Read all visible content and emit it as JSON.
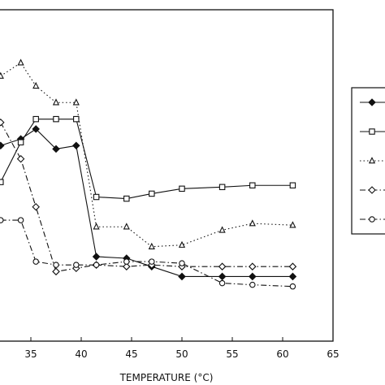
{
  "chart_data": {
    "type": "line",
    "x_label": "TEMPERATURE (°C)",
    "xlim": [
      30,
      65
    ],
    "xticks": [
      35,
      40,
      45,
      50,
      55,
      60,
      65
    ],
    "ylim": [
      0,
      100
    ],
    "legend": "right",
    "series": [
      {
        "color": "#111111",
        "marker": "diamond-filled",
        "dash": "solid",
        "x": [
          32,
          34,
          35.5,
          37.5,
          39.5,
          41.5,
          44.5,
          47,
          50,
          54,
          57,
          61
        ],
        "values": [
          59,
          61,
          64,
          58,
          59,
          25.5,
          25,
          22.5,
          19.5,
          19.5,
          19.5,
          19.5
        ]
      },
      {
        "color": "#111111",
        "marker": "square",
        "dash": "solid",
        "x": [
          32,
          34,
          35.5,
          37.5,
          39.5,
          41.5,
          44.5,
          47,
          50,
          54,
          57,
          61
        ],
        "values": [
          48,
          60,
          67,
          67,
          67,
          43.5,
          43,
          44.5,
          46,
          46.5,
          47,
          47
        ]
      },
      {
        "color": "#111111",
        "marker": "triangle",
        "dash": "dotted",
        "x": [
          32,
          34,
          35.5,
          37.5,
          39.5,
          41.5,
          44.5,
          47,
          50,
          54,
          57,
          61
        ],
        "values": [
          80,
          84,
          77,
          72,
          72,
          34.5,
          34.5,
          28.5,
          29,
          33.5,
          35.5,
          35
        ]
      },
      {
        "color": "#111111",
        "marker": "diamond",
        "dash": "dashdot",
        "x": [
          32,
          34,
          35.5,
          37.5,
          39.5,
          41.5,
          44.5,
          47,
          50,
          54,
          57,
          61
        ],
        "values": [
          66,
          55,
          40.5,
          21,
          22,
          23,
          22.5,
          23,
          22.5,
          22.5,
          22.5,
          22.5
        ]
      },
      {
        "color": "#111111",
        "marker": "circle",
        "dash": "dashdot",
        "x": [
          32,
          34,
          35.5,
          37.5,
          39.5,
          41.5,
          44.5,
          47,
          50,
          54,
          57,
          61
        ],
        "values": [
          36.5,
          36.5,
          24,
          23,
          23,
          23,
          24,
          24,
          23.5,
          17.5,
          17,
          16.5
        ]
      }
    ]
  }
}
